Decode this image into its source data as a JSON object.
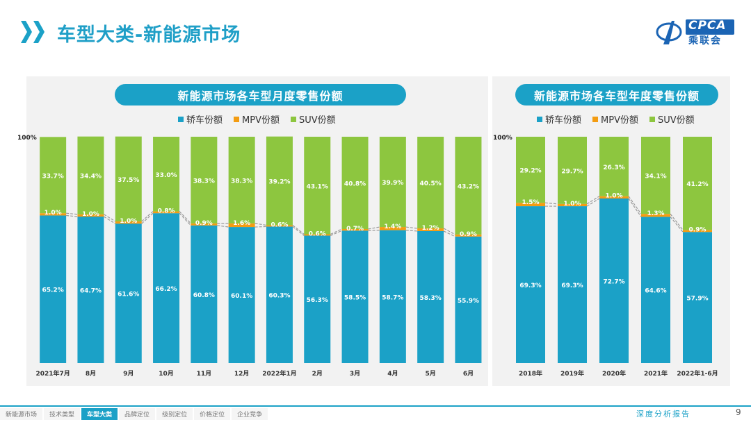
{
  "header": {
    "title": "车型大类-新能源市场",
    "logo_text": "CPCA",
    "logo_sub": "乘联会"
  },
  "colors": {
    "sedan": "#1ba1c7",
    "mpv": "#f39c12",
    "suv": "#8dc63f",
    "accent": "#1ba1c7"
  },
  "legend": [
    "轿车份额",
    "MPV份额",
    "SUV份额"
  ],
  "chart_data": [
    {
      "type": "bar",
      "title": "新能源市场各车型月度零售份额",
      "ytick": "100%",
      "categories": [
        "2021年7月",
        "8月",
        "9月",
        "10月",
        "11月",
        "12月",
        "2022年1月",
        "2月",
        "3月",
        "4月",
        "5月",
        "6月"
      ],
      "series": [
        {
          "name": "轿车份额",
          "values": [
            65.2,
            64.7,
            61.6,
            66.2,
            60.8,
            60.1,
            60.3,
            56.3,
            58.5,
            58.7,
            58.3,
            55.9
          ]
        },
        {
          "name": "MPV份额",
          "values": [
            1.0,
            1.0,
            1.0,
            0.8,
            0.9,
            1.6,
            0.6,
            0.6,
            0.7,
            1.4,
            1.2,
            0.9
          ]
        },
        {
          "name": "SUV份额",
          "values": [
            33.7,
            34.4,
            37.5,
            33.0,
            38.3,
            38.3,
            39.2,
            43.1,
            40.8,
            39.9,
            40.5,
            43.2
          ]
        }
      ]
    },
    {
      "type": "bar",
      "title": "新能源市场各车型年度零售份额",
      "ytick": "100%",
      "categories": [
        "2018年",
        "2019年",
        "2020年",
        "2021年",
        "2022年1-6月"
      ],
      "series": [
        {
          "name": "轿车份额",
          "values": [
            69.3,
            69.3,
            72.7,
            64.6,
            57.9
          ]
        },
        {
          "name": "MPV份额",
          "values": [
            1.5,
            1.0,
            1.0,
            1.3,
            0.9
          ]
        },
        {
          "name": "SUV份额",
          "values": [
            29.2,
            29.7,
            26.3,
            34.1,
            41.2
          ]
        }
      ]
    }
  ],
  "footer": {
    "nav": [
      "新能源市场",
      "技术类型",
      "车型大类",
      "品牌定位",
      "级别定位",
      "价格定位",
      "企业竞争"
    ],
    "active": 2,
    "report": "深度分析报告",
    "page": "9"
  }
}
